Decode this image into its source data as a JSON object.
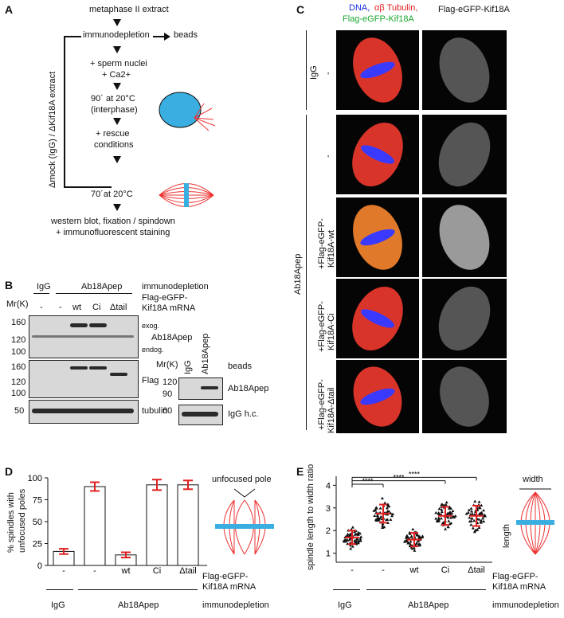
{
  "panelA": {
    "letter": "A",
    "steps": {
      "s1": "metaphase II extract",
      "s2": "immunodepletion",
      "beads": "beads",
      "s3a": "+ sperm nuclei",
      "s3b": "+ Ca2+",
      "s4a": "90´ at 20°C",
      "s4b": "(interphase)",
      "s5a": "+ rescue",
      "s5b": "conditions",
      "s6": "70´at 20°C",
      "s7a": "western blot, fixation / spindown",
      "s7b": "+ immunofluorescent staining"
    },
    "side_label": "Δmock (IgG) / ΔKif18A extract"
  },
  "panelB": {
    "letter": "B",
    "head_igg": "IgG",
    "head_ab": "Ab18Apep",
    "head_immuno": "immunodepletion",
    "mr": "Mr(K)",
    "lanes": [
      "-",
      "-",
      "wt",
      "Ci",
      "Δtail"
    ],
    "mrna1": "Flag-eGFP-",
    "mrna2": "Kif18A mRNA",
    "exog": "exog.",
    "endog": "endog.",
    "ab_label": "Ab18Apep",
    "flag": "Flag",
    "tubulin": "tubulin",
    "mw_top": [
      "160",
      "120",
      "100"
    ],
    "mw_flag": [
      "160",
      "120",
      "100"
    ],
    "mw_tub": "50",
    "beads_mr": "Mr(K)",
    "beads_lanes": [
      "IgG",
      "Ab18Apep"
    ],
    "beads": "beads",
    "beads_mw1": "120",
    "beads_mw2": "90",
    "beads_mw3": "60",
    "beads_ab": "Ab18Apep",
    "beads_igg": "IgG h.c."
  },
  "panelC": {
    "letter": "C",
    "head1a": "DNA,",
    "head1b": "αβ Tubulin,",
    "head1c": "Flag-eGFP-Kif18A",
    "head2": "Flag-eGFP-Kif18A",
    "row_labels": [
      {
        "a": "IgG",
        "b": "-"
      },
      {
        "a": "",
        "b": "-"
      },
      {
        "a": "+Flag-eGFP-",
        "b": "Kif18A-wt"
      },
      {
        "a": "+Flag-eGFP-",
        "b": "Kif18A-Ci"
      },
      {
        "a": "+Flag-eGFP-",
        "b": "Kif18A-Δtail"
      }
    ],
    "side_ab": "Ab18Apep"
  },
  "panelD": {
    "letter": "D",
    "ylabel1": "% spindles with",
    "ylabel2": "unfocused poles",
    "yticks": [
      "0",
      "25",
      "50",
      "75",
      "100"
    ],
    "xlabels": [
      "-",
      "-",
      "wt",
      "Ci",
      "Δtail"
    ],
    "mrna1": "Flag-eGFP-",
    "mrna2": "Kif18A mRNA",
    "igg": "IgG",
    "ab": "Ab18Apep",
    "immuno": "immunodepletion",
    "annotation": "unfocused pole"
  },
  "panelE": {
    "letter": "E",
    "ylabel": "spindle length to width ratio",
    "yticks": [
      "1",
      "2",
      "3",
      "4"
    ],
    "xlabels": [
      "-",
      "-",
      "wt",
      "Ci",
      "Δtail"
    ],
    "sig": [
      "****",
      "****",
      "****"
    ],
    "mrna1": "Flag-eGFP-",
    "mrna2": "Kif18A mRNA",
    "igg": "IgG",
    "ab": "Ab18Apep",
    "immuno": "immunodepletion",
    "width": "width",
    "length": "length"
  },
  "chart_data": [
    {
      "type": "bar",
      "categories": [
        "IgG -",
        "Ab18Apep -",
        "Ab18Apep wt",
        "Ab18Apep Ci",
        "Ab18Apep Δtail"
      ],
      "values": [
        16,
        90,
        12,
        92,
        92
      ],
      "errors": [
        3,
        5,
        3,
        6,
        5
      ],
      "ylabel": "% spindles with unfocused poles",
      "ylim": [
        0,
        100
      ]
    },
    {
      "type": "scatter",
      "categories": [
        "IgG -",
        "Ab18Apep -",
        "Ab18Apep wt",
        "Ab18Apep Ci",
        "Ab18Apep Δtail"
      ],
      "means": [
        1.7,
        2.75,
        1.6,
        2.65,
        2.65
      ],
      "sd": [
        0.3,
        0.4,
        0.3,
        0.4,
        0.45
      ],
      "ylabel": "spindle length to width ratio",
      "ylim": [
        0.6,
        4.4
      ]
    }
  ]
}
